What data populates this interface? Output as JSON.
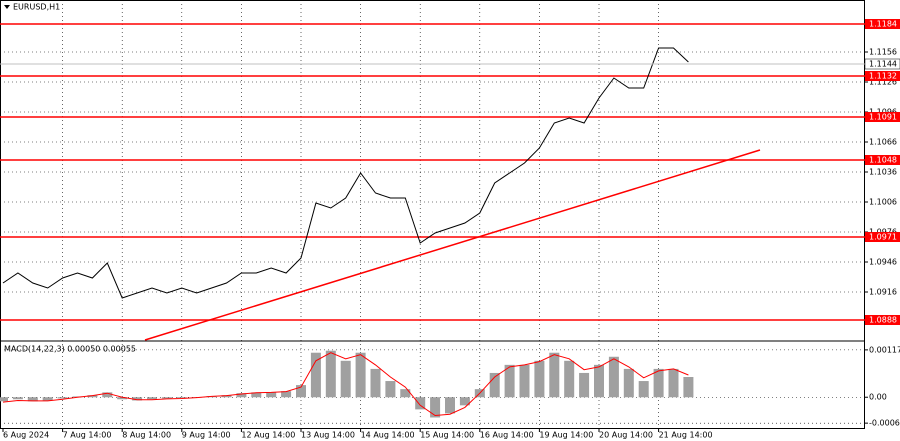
{
  "chart_data": [
    {
      "type": "line",
      "title": "EURUSD,H1",
      "color": "#000000",
      "categories": [
        "6 Aug 2024",
        null,
        null,
        null,
        "7 Aug 14:00",
        null,
        null,
        null,
        "8 Aug 14:00",
        null,
        null,
        null,
        "9 Aug 14:00",
        null,
        null,
        null,
        "12 Aug 14:00",
        null,
        null,
        null,
        "13 Aug 14:00",
        null,
        null,
        null,
        "14 Aug 14:00",
        null,
        null,
        null,
        "15 Aug 14:00",
        null,
        null,
        null,
        "16 Aug 14:00",
        null,
        null,
        null,
        "19 Aug 14:00",
        null,
        null,
        null,
        "20 Aug 14:00",
        null,
        null,
        null,
        "21 Aug 14:00",
        null,
        null
      ],
      "values": [
        1.0925,
        1.0935,
        1.0925,
        1.092,
        1.093,
        1.0935,
        1.093,
        1.0945,
        1.091,
        1.0915,
        1.092,
        1.0915,
        1.092,
        1.0915,
        1.092,
        1.0925,
        1.0935,
        1.0935,
        1.094,
        1.0935,
        1.095,
        1.1005,
        1.1,
        1.101,
        1.1035,
        1.1015,
        1.101,
        1.101,
        1.0965,
        1.0975,
        1.098,
        1.0985,
        1.0995,
        1.1025,
        1.1035,
        1.1045,
        1.106,
        1.1085,
        1.109,
        1.1085,
        1.111,
        1.113,
        1.112,
        1.112,
        1.116,
        1.116,
        1.1146
      ],
      "levels": [
        1.1184,
        1.1132,
        1.1091,
        1.1048,
        1.0971,
        1.0888
      ],
      "level_color": "#ff0000",
      "current_price": 1.1144,
      "trend_line": [
        1.0868,
        1.1058
      ],
      "ylim": [
        1.0868,
        1.1208
      ],
      "yticks": [
        1.0916,
        1.0946,
        1.0976,
        1.1006,
        1.1036,
        1.1066,
        1.1096,
        1.1126,
        1.1156
      ],
      "grid": true
    },
    {
      "type": "macd",
      "label": "MACD(14,22,3) 0.00050 0.00055",
      "color": "#a0a0a0",
      "signal_color": "#ff0000",
      "values": [
        -0.0001,
        -5e-05,
        -0.0001,
        -8e-05,
        -3e-05,
        2e-05,
        5e-05,
        0.00012,
        -5e-05,
        -8e-05,
        -5e-05,
        -3e-05,
        -2e-05,
        0.0,
        3e-05,
        5e-05,
        0.0001,
        0.00012,
        0.00013,
        0.00015,
        0.0003,
        0.0011,
        0.00115,
        0.0009,
        0.0011,
        0.0007,
        0.0004,
        0.0002,
        -0.0003,
        -0.0005,
        -0.0004,
        -0.0002,
        0.0002,
        0.0006,
        0.0008,
        0.0008,
        0.0009,
        0.0011,
        0.0009,
        0.0006,
        0.0008,
        0.001,
        0.0007,
        0.0004,
        0.0007,
        0.0007,
        0.0005
      ],
      "signal": [
        -0.00012,
        -8e-05,
        -9e-05,
        -9e-05,
        -5e-05,
        0.0,
        4e-05,
        0.0001,
        0.0,
        -6e-05,
        -6e-05,
        -4e-05,
        -3e-05,
        -1e-05,
        2e-05,
        4e-05,
        8e-05,
        0.00011,
        0.00012,
        0.00014,
        0.00025,
        0.0009,
        0.0011,
        0.00095,
        0.00105,
        0.0008,
        0.0005,
        0.00025,
        -0.0002,
        -0.00045,
        -0.00042,
        -0.00025,
        0.0001,
        0.0005,
        0.00075,
        0.0008,
        0.00088,
        0.00105,
        0.00095,
        0.00068,
        0.00075,
        0.00095,
        0.00075,
        0.00048,
        0.00065,
        0.0007,
        0.00055
      ],
      "ylim": [
        -0.00076,
        0.00134
      ],
      "yticks": [
        -0.00064,
        {
          "value": 0,
          "label": "0.00"
        },
        0.00117
      ],
      "grid": true
    }
  ]
}
